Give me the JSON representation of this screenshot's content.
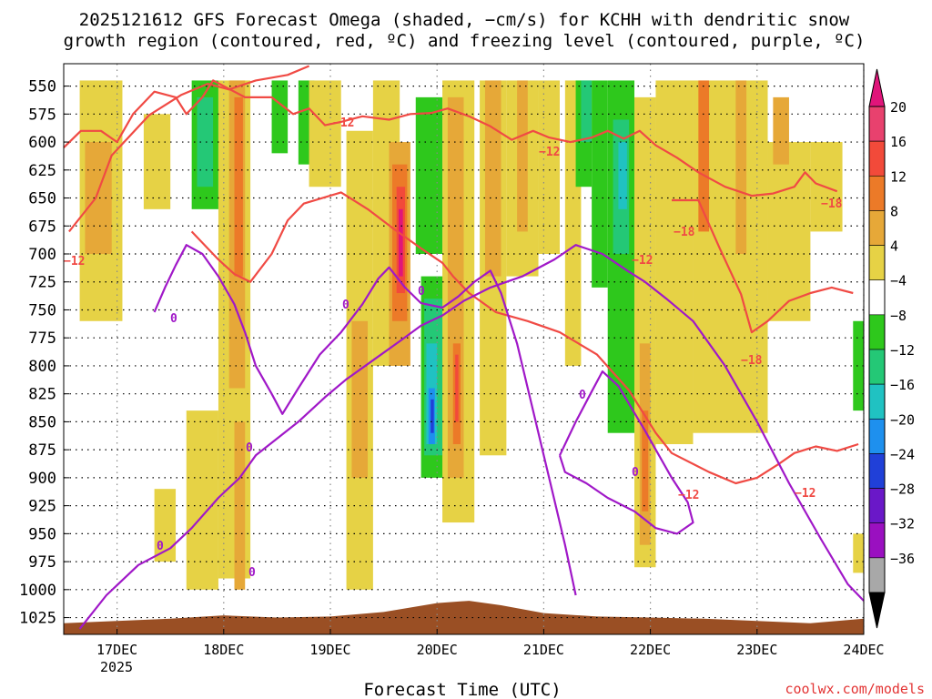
{
  "chart_data": {
    "type": "heatmap",
    "title_line1": "2025121612 GFS Forecast Omega (shaded, −cm/s) for KCHH with dendritic snow",
    "title_line2": "growth region (contoured, red, ºC) and freezing level (contoured, purple, ºC)",
    "xlabel": "Forecast Time (UTC)",
    "watermark": "coolwx.com/models",
    "x_ticks": [
      "17DEC",
      "18DEC",
      "19DEC",
      "20DEC",
      "21DEC",
      "22DEC",
      "23DEC",
      "24DEC"
    ],
    "x_year": "2025",
    "x_range_days": [
      16.5,
      24.0
    ],
    "y_ticks": [
      "550",
      "575",
      "600",
      "625",
      "650",
      "675",
      "700",
      "725",
      "750",
      "775",
      "800",
      "825",
      "850",
      "875",
      "900",
      "925",
      "950",
      "975",
      "1000",
      "1025"
    ],
    "y_range_hpa": [
      530,
      1040
    ],
    "colorbar": {
      "labels": [
        "20",
        "16",
        "12",
        "8",
        "4",
        "−4",
        "−8",
        "−12",
        "−16",
        "−20",
        "−24",
        "−28",
        "−32",
        "−36"
      ],
      "colors": [
        "#e8416e",
        "#f24a3a",
        "#ec7a28",
        "#e6a838",
        "#e6d245",
        "#ffffff",
        "#2ec81c",
        "#24c876",
        "#20c2c2",
        "#1e90ee",
        "#2040d8",
        "#6a18c8",
        "#9a10c0",
        "#a8a8a8"
      ],
      "top_color": "#e0157a",
      "bottom_color": "#000000"
    },
    "shading_colors": {
      "weak_up": "#e6d245",
      "mod_up": "#e6a838",
      "strong_up": "#ec7a28",
      "vstrong_up": "#f24a3a",
      "extreme_up": "#e0157a",
      "weak_down": "#2ec81c",
      "mod_down": "#24c876",
      "strong_down": "#20c2c2",
      "vstrong_down": "#1e90ee",
      "extreme_down": "#2040d8"
    },
    "terrain_color": "#9a4f24",
    "dgz_color": "#f04a44",
    "freezing_color": "#a018c8",
    "dgz_contour_labels": [
      "−12",
      "−18"
    ],
    "freezing_contour_label": "0",
    "dgz_minus12_upper": [
      [
        16.5,
        605
      ],
      [
        16.66,
        590
      ],
      [
        16.85,
        590
      ],
      [
        17.0,
        600
      ],
      [
        17.15,
        575
      ],
      [
        17.35,
        555
      ],
      [
        17.55,
        560
      ],
      [
        17.65,
        575
      ],
      [
        17.8,
        560
      ],
      [
        17.9,
        545
      ],
      [
        18.0,
        550
      ],
      [
        18.2,
        560
      ],
      [
        18.45,
        560
      ],
      [
        18.65,
        575
      ],
      [
        18.8,
        570
      ],
      [
        18.95,
        585
      ],
      [
        19.1,
        582
      ],
      [
        19.3,
        577
      ],
      [
        19.55,
        580
      ],
      [
        19.75,
        575
      ],
      [
        19.95,
        574
      ],
      [
        20.1,
        570
      ],
      [
        20.3,
        577
      ],
      [
        20.5,
        586
      ],
      [
        20.7,
        598
      ],
      [
        20.9,
        590
      ],
      [
        21.05,
        596
      ],
      [
        21.25,
        600
      ],
      [
        21.45,
        596
      ],
      [
        21.6,
        590
      ],
      [
        21.75,
        597
      ],
      [
        21.9,
        590
      ],
      [
        22.05,
        603
      ],
      [
        22.25,
        614
      ],
      [
        22.45,
        627
      ],
      [
        22.7,
        640
      ],
      [
        22.95,
        648
      ],
      [
        23.15,
        646
      ],
      [
        23.35,
        640
      ],
      [
        23.45,
        627
      ],
      [
        23.55,
        637
      ],
      [
        23.75,
        644
      ]
    ],
    "dgz_minus18": [
      [
        16.55,
        680
      ],
      [
        16.8,
        650
      ],
      [
        16.95,
        612
      ],
      [
        17.3,
        576
      ],
      [
        17.6,
        558
      ],
      [
        17.85,
        548
      ],
      [
        18.05,
        553
      ],
      [
        18.3,
        545
      ],
      [
        18.6,
        540
      ],
      [
        18.8,
        532
      ]
    ],
    "dgz_minus12_mid": [
      [
        17.7,
        680
      ],
      [
        17.95,
        705
      ],
      [
        18.1,
        718
      ],
      [
        18.25,
        725
      ],
      [
        18.45,
        700
      ],
      [
        18.6,
        670
      ],
      [
        18.75,
        655
      ],
      [
        19.1,
        645
      ],
      [
        19.35,
        660
      ],
      [
        19.6,
        678
      ],
      [
        19.85,
        695
      ],
      [
        20.05,
        708
      ],
      [
        20.15,
        720
      ],
      [
        20.3,
        735
      ],
      [
        20.55,
        752
      ],
      [
        20.85,
        760
      ],
      [
        21.15,
        770
      ],
      [
        21.5,
        790
      ],
      [
        21.8,
        822
      ],
      [
        22.05,
        860
      ],
      [
        22.2,
        878
      ],
      [
        22.55,
        895
      ],
      [
        22.8,
        905
      ],
      [
        23.0,
        900
      ],
      [
        23.2,
        888
      ],
      [
        23.35,
        878
      ],
      [
        23.55,
        872
      ],
      [
        23.75,
        876
      ],
      [
        23.95,
        870
      ]
    ],
    "dgz_minus18_b": [
      [
        22.2,
        652
      ],
      [
        22.45,
        652
      ],
      [
        22.65,
        695
      ],
      [
        22.85,
        736
      ],
      [
        22.95,
        770
      ],
      [
        23.1,
        760
      ],
      [
        23.3,
        742
      ],
      [
        23.5,
        735
      ],
      [
        23.7,
        730
      ],
      [
        23.9,
        735
      ]
    ],
    "freezing_main": [
      [
        16.65,
        1035
      ],
      [
        16.9,
        1005
      ],
      [
        17.2,
        978
      ],
      [
        17.5,
        963
      ],
      [
        17.7,
        945
      ],
      [
        17.95,
        918
      ],
      [
        18.15,
        900
      ],
      [
        18.3,
        880
      ],
      [
        18.5,
        865
      ],
      [
        18.7,
        850
      ],
      [
        18.95,
        828
      ],
      [
        19.15,
        812
      ],
      [
        19.4,
        795
      ],
      [
        19.65,
        778
      ],
      [
        19.85,
        764
      ],
      [
        20.05,
        755
      ],
      [
        20.25,
        742
      ],
      [
        20.5,
        730
      ],
      [
        20.8,
        720
      ],
      [
        21.1,
        705
      ],
      [
        21.3,
        692
      ],
      [
        21.55,
        700
      ],
      [
        21.8,
        716
      ],
      [
        21.95,
        725
      ],
      [
        22.15,
        740
      ],
      [
        22.4,
        760
      ],
      [
        22.7,
        800
      ],
      [
        23.0,
        850
      ],
      [
        23.3,
        905
      ],
      [
        23.6,
        955
      ],
      [
        23.85,
        995
      ],
      [
        24.0,
        1010
      ]
    ],
    "freezing_upper": [
      [
        17.35,
        752
      ],
      [
        17.45,
        730
      ],
      [
        17.55,
        710
      ],
      [
        17.65,
        692
      ],
      [
        17.8,
        700
      ],
      [
        17.95,
        720
      ],
      [
        18.1,
        745
      ],
      [
        18.2,
        770
      ],
      [
        18.3,
        800
      ],
      [
        18.45,
        825
      ],
      [
        18.55,
        843
      ],
      [
        18.7,
        820
      ],
      [
        18.9,
        790
      ],
      [
        19.1,
        770
      ],
      [
        19.3,
        745
      ],
      [
        19.45,
        722
      ],
      [
        19.55,
        712
      ],
      [
        19.7,
        730
      ],
      [
        19.85,
        744
      ],
      [
        20.05,
        748
      ],
      [
        20.2,
        738
      ],
      [
        20.35,
        725
      ],
      [
        20.5,
        715
      ],
      [
        20.6,
        735
      ],
      [
        20.75,
        780
      ],
      [
        20.9,
        840
      ],
      [
        21.05,
        900
      ],
      [
        21.2,
        960
      ],
      [
        21.3,
        1005
      ]
    ],
    "freezing_loop": [
      [
        21.15,
        880
      ],
      [
        21.3,
        850
      ],
      [
        21.45,
        823
      ],
      [
        21.55,
        805
      ],
      [
        21.7,
        818
      ],
      [
        21.85,
        842
      ],
      [
        21.95,
        858
      ],
      [
        22.05,
        875
      ],
      [
        22.2,
        900
      ],
      [
        22.35,
        922
      ],
      [
        22.4,
        940
      ],
      [
        22.25,
        950
      ],
      [
        22.05,
        945
      ],
      [
        21.85,
        930
      ],
      [
        21.6,
        918
      ],
      [
        21.4,
        905
      ],
      [
        21.2,
        895
      ],
      [
        21.15,
        880
      ]
    ],
    "terrain": [
      [
        16.5,
        1030
      ],
      [
        17.0,
        1028
      ],
      [
        17.5,
        1026
      ],
      [
        18.0,
        1023
      ],
      [
        18.5,
        1025
      ],
      [
        19.0,
        1024
      ],
      [
        19.5,
        1020
      ],
      [
        20.0,
        1012
      ],
      [
        20.3,
        1010
      ],
      [
        20.6,
        1014
      ],
      [
        21.0,
        1021
      ],
      [
        21.5,
        1024
      ],
      [
        22.0,
        1025
      ],
      [
        22.5,
        1026
      ],
      [
        23.0,
        1028
      ],
      [
        23.5,
        1030
      ],
      [
        24.0,
        1026
      ]
    ],
    "omega_cells": [
      {
        "x0": 16.65,
        "x1": 17.05,
        "p0": 545,
        "p1": 760,
        "c": "weak_up"
      },
      {
        "x0": 16.7,
        "x1": 16.95,
        "p0": 600,
        "p1": 700,
        "c": "mod_up"
      },
      {
        "x0": 17.25,
        "x1": 17.5,
        "p0": 575,
        "p1": 660,
        "c": "weak_up"
      },
      {
        "x0": 17.35,
        "x1": 17.55,
        "p0": 910,
        "p1": 975,
        "c": "weak_up"
      },
      {
        "x0": 17.65,
        "x1": 17.95,
        "p0": 840,
        "p1": 1000,
        "c": "weak_up"
      },
      {
        "x0": 17.7,
        "x1": 17.95,
        "p0": 545,
        "p1": 660,
        "c": "weak_down"
      },
      {
        "x0": 17.75,
        "x1": 17.9,
        "p0": 560,
        "p1": 640,
        "c": "mod_down"
      },
      {
        "x0": 17.95,
        "x1": 18.25,
        "p0": 545,
        "p1": 990,
        "c": "weak_up"
      },
      {
        "x0": 18.05,
        "x1": 18.2,
        "p0": 545,
        "p1": 820,
        "c": "mod_up"
      },
      {
        "x0": 18.1,
        "x1": 18.18,
        "p0": 560,
        "p1": 720,
        "c": "strong_up"
      },
      {
        "x0": 18.1,
        "x1": 18.2,
        "p0": 850,
        "p1": 1000,
        "c": "mod_up"
      },
      {
        "x0": 18.45,
        "x1": 18.6,
        "p0": 545,
        "p1": 610,
        "c": "weak_down"
      },
      {
        "x0": 18.7,
        "x1": 18.85,
        "p0": 545,
        "p1": 620,
        "c": "weak_down"
      },
      {
        "x0": 18.8,
        "x1": 19.1,
        "p0": 545,
        "p1": 640,
        "c": "weak_up"
      },
      {
        "x0": 19.15,
        "x1": 19.4,
        "p0": 590,
        "p1": 1000,
        "c": "weak_up"
      },
      {
        "x0": 19.2,
        "x1": 19.35,
        "p0": 760,
        "p1": 900,
        "c": "mod_up"
      },
      {
        "x0": 19.4,
        "x1": 19.65,
        "p0": 545,
        "p1": 800,
        "c": "weak_up"
      },
      {
        "x0": 19.55,
        "x1": 19.75,
        "p0": 600,
        "p1": 800,
        "c": "mod_up"
      },
      {
        "x0": 19.58,
        "x1": 19.72,
        "p0": 620,
        "p1": 760,
        "c": "strong_up"
      },
      {
        "x0": 19.62,
        "x1": 19.7,
        "p0": 640,
        "p1": 735,
        "c": "vstrong_up"
      },
      {
        "x0": 19.64,
        "x1": 19.68,
        "p0": 660,
        "p1": 720,
        "c": "extreme_up"
      },
      {
        "x0": 19.8,
        "x1": 20.05,
        "p0": 560,
        "p1": 700,
        "c": "weak_down"
      },
      {
        "x0": 19.85,
        "x1": 20.15,
        "p0": 720,
        "p1": 900,
        "c": "weak_down"
      },
      {
        "x0": 19.88,
        "x1": 20.05,
        "p0": 740,
        "p1": 880,
        "c": "mod_down"
      },
      {
        "x0": 19.9,
        "x1": 20.0,
        "p0": 780,
        "p1": 870,
        "c": "strong_down"
      },
      {
        "x0": 19.92,
        "x1": 19.98,
        "p0": 820,
        "p1": 870,
        "c": "vstrong_down"
      },
      {
        "x0": 19.94,
        "x1": 19.97,
        "p0": 830,
        "p1": 860,
        "c": "extreme_down"
      },
      {
        "x0": 20.05,
        "x1": 20.35,
        "p0": 545,
        "p1": 940,
        "c": "weak_up"
      },
      {
        "x0": 20.1,
        "x1": 20.25,
        "p0": 560,
        "p1": 900,
        "c": "mod_up"
      },
      {
        "x0": 20.15,
        "x1": 20.22,
        "p0": 780,
        "p1": 870,
        "c": "strong_up"
      },
      {
        "x0": 20.17,
        "x1": 20.2,
        "p0": 790,
        "p1": 850,
        "c": "vstrong_up"
      },
      {
        "x0": 20.4,
        "x1": 20.65,
        "p0": 545,
        "p1": 880,
        "c": "weak_up"
      },
      {
        "x0": 20.45,
        "x1": 20.6,
        "p0": 545,
        "p1": 720,
        "c": "mod_up"
      },
      {
        "x0": 20.65,
        "x1": 20.95,
        "p0": 545,
        "p1": 720,
        "c": "weak_up"
      },
      {
        "x0": 20.75,
        "x1": 20.85,
        "p0": 545,
        "p1": 680,
        "c": "mod_up"
      },
      {
        "x0": 20.95,
        "x1": 21.15,
        "p0": 545,
        "p1": 700,
        "c": "weak_up"
      },
      {
        "x0": 21.2,
        "x1": 21.35,
        "p0": 545,
        "p1": 800,
        "c": "weak_up"
      },
      {
        "x0": 21.3,
        "x1": 21.45,
        "p0": 545,
        "p1": 640,
        "c": "weak_down"
      },
      {
        "x0": 21.35,
        "x1": 21.45,
        "p0": 545,
        "p1": 600,
        "c": "mod_down"
      },
      {
        "x0": 21.45,
        "x1": 21.6,
        "p0": 545,
        "p1": 730,
        "c": "weak_down"
      },
      {
        "x0": 21.6,
        "x1": 21.85,
        "p0": 545,
        "p1": 860,
        "c": "weak_down"
      },
      {
        "x0": 21.65,
        "x1": 21.8,
        "p0": 580,
        "p1": 700,
        "c": "mod_down"
      },
      {
        "x0": 21.7,
        "x1": 21.78,
        "p0": 600,
        "p1": 660,
        "c": "strong_down"
      },
      {
        "x0": 21.85,
        "x1": 22.05,
        "p0": 560,
        "p1": 980,
        "c": "weak_up"
      },
      {
        "x0": 21.9,
        "x1": 22.0,
        "p0": 780,
        "p1": 960,
        "c": "mod_up"
      },
      {
        "x0": 21.92,
        "x1": 21.98,
        "p0": 840,
        "p1": 930,
        "c": "strong_up"
      },
      {
        "x0": 22.05,
        "x1": 22.4,
        "p0": 545,
        "p1": 870,
        "c": "weak_up"
      },
      {
        "x0": 22.4,
        "x1": 22.75,
        "p0": 545,
        "p1": 860,
        "c": "weak_up"
      },
      {
        "x0": 22.45,
        "x1": 22.55,
        "p0": 545,
        "p1": 680,
        "c": "strong_up"
      },
      {
        "x0": 22.75,
        "x1": 23.1,
        "p0": 545,
        "p1": 860,
        "c": "weak_up"
      },
      {
        "x0": 22.8,
        "x1": 22.9,
        "p0": 545,
        "p1": 700,
        "c": "mod_up"
      },
      {
        "x0": 23.1,
        "x1": 23.5,
        "p0": 600,
        "p1": 760,
        "c": "weak_up"
      },
      {
        "x0": 23.15,
        "x1": 23.3,
        "p0": 560,
        "p1": 620,
        "c": "mod_up"
      },
      {
        "x0": 23.5,
        "x1": 23.8,
        "p0": 600,
        "p1": 680,
        "c": "weak_up"
      },
      {
        "x0": 23.9,
        "x1": 24.0,
        "p0": 760,
        "p1": 840,
        "c": "weak_down"
      },
      {
        "x0": 23.9,
        "x1": 24.0,
        "p0": 950,
        "p1": 985,
        "c": "weak_up"
      }
    ]
  }
}
